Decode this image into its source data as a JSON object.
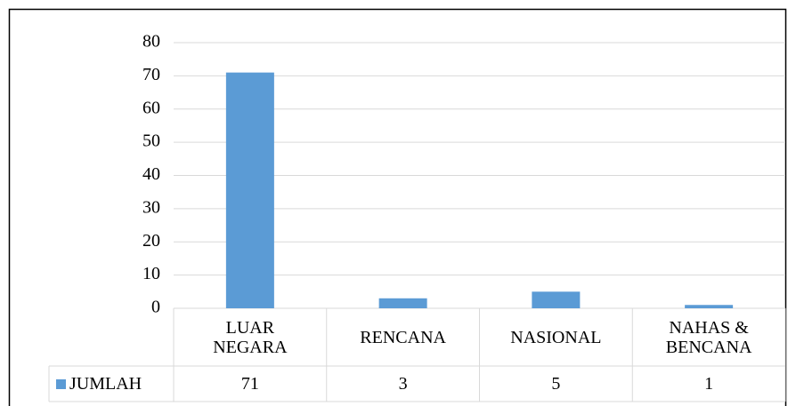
{
  "chart_data": {
    "type": "bar",
    "categories": [
      "LUAR NEGARA",
      "RENCANA",
      "NASIONAL",
      "NAHAS & BENCANA"
    ],
    "series": [
      {
        "name": "JUMLAH",
        "color": "#5b9bd5",
        "values": [
          71,
          3,
          5,
          1
        ]
      }
    ],
    "ylim": [
      0,
      80
    ],
    "yticks": [
      0,
      10,
      20,
      30,
      40,
      50,
      60,
      70,
      80
    ],
    "grid": true,
    "data_table": true
  }
}
